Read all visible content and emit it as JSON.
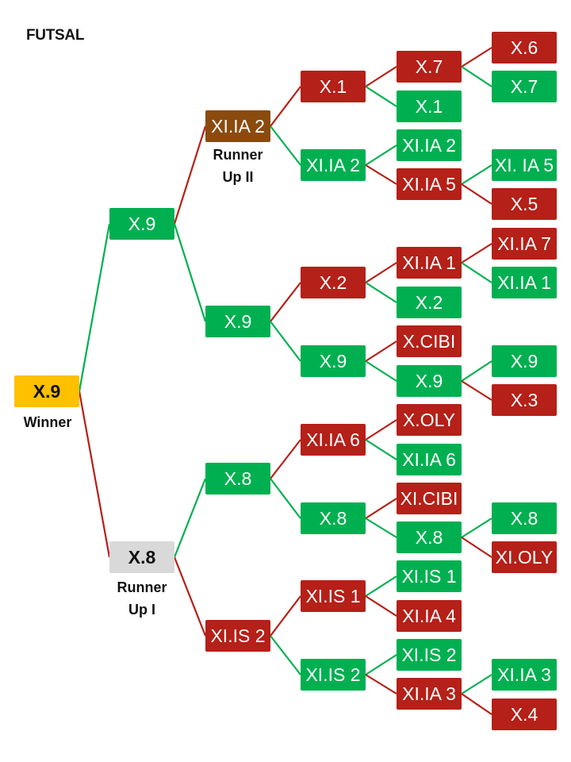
{
  "title": "FUTSAL",
  "colors": {
    "win": "#00b050",
    "lose": "#b52018",
    "champion": "#ffc000",
    "runner_up_1": "#d9d9d9",
    "runner_up_2": "#8b4b0e",
    "line_win": "#00b050",
    "line_lose": "#b52018"
  },
  "labels": {
    "winner": "Winner",
    "runner_up_1_line1": "Runner",
    "runner_up_1_line2": "Up I",
    "runner_up_2_line1": "Runner",
    "runner_up_2_line2": "Up II"
  },
  "bracket": {
    "final": {
      "team": "X.9",
      "result": "champion"
    },
    "semifinal_top": {
      "team": "X.9",
      "result": "win"
    },
    "semifinal_bottom": {
      "team": "X.8",
      "result": "runner_up_1"
    },
    "quarterfinals": [
      {
        "team": "XI.IA 2",
        "result": "runner_up_2"
      },
      {
        "team": "X.9",
        "result": "win"
      },
      {
        "team": "X.8",
        "result": "win"
      },
      {
        "team": "XI.IS 2",
        "result": "lose"
      }
    ],
    "round_of_16": [
      {
        "team": "X.1",
        "result": "lose"
      },
      {
        "team": "XI.IA 2",
        "result": "win"
      },
      {
        "team": "X.2",
        "result": "lose"
      },
      {
        "team": "X.9",
        "result": "win"
      },
      {
        "team": "XI.IA 6",
        "result": "lose"
      },
      {
        "team": "X.8",
        "result": "win"
      },
      {
        "team": "XI.IS 1",
        "result": "lose"
      },
      {
        "team": "XI.IS 2",
        "result": "win"
      }
    ],
    "round_of_32": [
      {
        "team": "X.7",
        "result": "lose"
      },
      {
        "team": "X.1",
        "result": "win"
      },
      {
        "team": "XI.IA 2",
        "result": "win"
      },
      {
        "team": "XI.IA 5",
        "result": "lose"
      },
      {
        "team": "XI.IA 1",
        "result": "lose"
      },
      {
        "team": "X.2",
        "result": "win"
      },
      {
        "team": "X.CIBI",
        "result": "lose"
      },
      {
        "team": "X.9",
        "result": "win"
      },
      {
        "team": "X.OLY",
        "result": "lose"
      },
      {
        "team": "XI.IA 6",
        "result": "win"
      },
      {
        "team": "XI.CIBI",
        "result": "lose"
      },
      {
        "team": "X.8",
        "result": "win"
      },
      {
        "team": "XI.IS 1",
        "result": "win"
      },
      {
        "team": "XI.IA 4",
        "result": "lose"
      },
      {
        "team": "XI.IS 2",
        "result": "win"
      },
      {
        "team": "XI.IA 3",
        "result": "lose"
      }
    ],
    "preliminary": [
      {
        "team": "X.6",
        "result": "lose"
      },
      {
        "team": "X.7",
        "result": "win"
      },
      {
        "team": "XI. IA 5",
        "result": "win"
      },
      {
        "team": "X.5",
        "result": "lose"
      },
      {
        "team": "XI.IA 7",
        "result": "lose"
      },
      {
        "team": "XI.IA 1",
        "result": "win"
      },
      {
        "team": "X.9",
        "result": "win"
      },
      {
        "team": "X.3",
        "result": "lose"
      },
      {
        "team": "X.8",
        "result": "win"
      },
      {
        "team": "XI.OLY",
        "result": "lose"
      },
      {
        "team": "XI.IA 3",
        "result": "win"
      },
      {
        "team": "X.4",
        "result": "lose"
      }
    ]
  }
}
